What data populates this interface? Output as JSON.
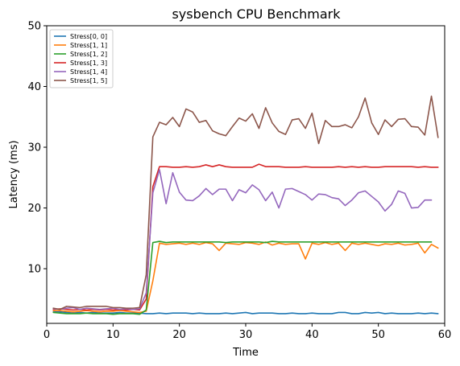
{
  "chart_data": {
    "type": "line",
    "title": "sysbench CPU Benchmark",
    "xlabel": "Time",
    "ylabel": "Latency (ms)",
    "xlim": [
      0,
      60
    ],
    "ylim": [
      1,
      50
    ],
    "xticks": [
      0,
      10,
      20,
      30,
      40,
      50,
      60
    ],
    "yticks": [
      10,
      20,
      30,
      40,
      50
    ],
    "grid": false,
    "legend_position": "top-left",
    "series": [
      {
        "name": "Stress[0, 0]",
        "color": "#1f77b4",
        "x": [
          1,
          2,
          3,
          4,
          5,
          6,
          7,
          8,
          9,
          10,
          11,
          12,
          13,
          14,
          15,
          16,
          17,
          18,
          19,
          20,
          21,
          22,
          23,
          24,
          25,
          26,
          27,
          28,
          29,
          30,
          31,
          32,
          33,
          34,
          35,
          36,
          37,
          38,
          39,
          40,
          41,
          42,
          43,
          44,
          45,
          46,
          47,
          48,
          49,
          50,
          51,
          52,
          53,
          54,
          55,
          56,
          57,
          58,
          59
        ],
        "y": [
          3.0,
          2.9,
          2.8,
          2.7,
          2.8,
          2.7,
          2.8,
          2.7,
          2.7,
          2.7,
          2.8,
          2.7,
          2.7,
          2.7,
          2.6,
          2.6,
          2.7,
          2.6,
          2.7,
          2.7,
          2.7,
          2.6,
          2.7,
          2.6,
          2.6,
          2.6,
          2.7,
          2.6,
          2.7,
          2.8,
          2.6,
          2.7,
          2.7,
          2.7,
          2.6,
          2.6,
          2.7,
          2.6,
          2.6,
          2.7,
          2.6,
          2.6,
          2.6,
          2.8,
          2.8,
          2.6,
          2.6,
          2.8,
          2.7,
          2.8,
          2.6,
          2.7,
          2.6,
          2.6,
          2.6,
          2.7,
          2.6,
          2.7,
          2.6
        ]
      },
      {
        "name": "Stress[1, 1]",
        "color": "#ff7f0e",
        "x": [
          1,
          2,
          3,
          4,
          5,
          6,
          7,
          8,
          9,
          10,
          11,
          12,
          13,
          14,
          15,
          16,
          17,
          18,
          19,
          20,
          21,
          22,
          23,
          24,
          25,
          26,
          27,
          28,
          29,
          30,
          31,
          32,
          33,
          34,
          35,
          36,
          37,
          38,
          39,
          40,
          41,
          42,
          43,
          44,
          45,
          46,
          47,
          48,
          49,
          50,
          51,
          52,
          53,
          54,
          55,
          56,
          57,
          58,
          59
        ],
        "y": [
          3.1,
          3.1,
          3.0,
          2.9,
          3.0,
          3.1,
          3.0,
          2.9,
          3.0,
          3.0,
          3.1,
          3.0,
          2.9,
          2.8,
          3.0,
          8.0,
          14.2,
          14.0,
          14.1,
          14.2,
          14.0,
          14.2,
          14.0,
          14.3,
          14.1,
          13.0,
          14.2,
          14.1,
          14.0,
          14.3,
          14.2,
          14.0,
          14.4,
          13.9,
          14.2,
          14.0,
          14.1,
          14.1,
          11.6,
          14.2,
          14.0,
          14.3,
          14.0,
          14.2,
          13.0,
          14.2,
          14.0,
          14.2,
          14.0,
          13.8,
          14.1,
          14.0,
          14.2,
          13.9,
          14.0,
          14.2,
          12.6,
          14.0,
          13.4
        ]
      },
      {
        "name": "Stress[1, 2]",
        "color": "#2ca02c",
        "x": [
          1,
          2,
          3,
          4,
          5,
          6,
          7,
          8,
          9,
          10,
          11,
          12,
          13,
          14,
          15,
          16,
          17,
          18,
          19,
          20,
          21,
          22,
          23,
          24,
          25,
          26,
          27,
          28,
          29,
          30,
          31,
          32,
          33,
          34,
          35,
          36,
          37,
          38,
          39,
          40,
          41,
          42,
          43,
          44,
          45,
          46,
          47,
          48,
          49,
          50,
          51,
          52,
          53,
          54,
          55,
          56,
          57,
          58
        ],
        "y": [
          2.8,
          2.7,
          2.6,
          2.6,
          2.6,
          2.7,
          2.6,
          2.6,
          2.6,
          2.5,
          2.6,
          2.6,
          2.6,
          2.5,
          3.2,
          14.3,
          14.5,
          14.3,
          14.4,
          14.4,
          14.4,
          14.4,
          14.4,
          14.4,
          14.4,
          14.4,
          14.3,
          14.4,
          14.4,
          14.4,
          14.4,
          14.4,
          14.3,
          14.5,
          14.4,
          14.4,
          14.4,
          14.4,
          14.4,
          14.4,
          14.4,
          14.4,
          14.4,
          14.4,
          14.4,
          14.4,
          14.4,
          14.4,
          14.4,
          14.4,
          14.4,
          14.4,
          14.4,
          14.4,
          14.4,
          14.4,
          14.4,
          14.4
        ]
      },
      {
        "name": "Stress[1, 3]",
        "color": "#d62728",
        "x": [
          1,
          2,
          3,
          4,
          5,
          6,
          7,
          8,
          9,
          10,
          11,
          12,
          13,
          14,
          15,
          16,
          17,
          18,
          19,
          20,
          21,
          22,
          23,
          24,
          25,
          26,
          27,
          28,
          29,
          30,
          31,
          32,
          33,
          34,
          35,
          36,
          37,
          38,
          39,
          40,
          41,
          42,
          43,
          44,
          45,
          46,
          47,
          48,
          49,
          50,
          51,
          52,
          53,
          54,
          55,
          56,
          57,
          58,
          59
        ],
        "y": [
          3.3,
          3.4,
          3.3,
          3.2,
          3.3,
          3.2,
          3.3,
          3.2,
          3.3,
          3.2,
          3.3,
          3.2,
          3.3,
          3.2,
          5.0,
          23.5,
          26.8,
          26.8,
          26.7,
          26.7,
          26.8,
          26.7,
          26.8,
          27.1,
          26.8,
          27.1,
          26.8,
          26.7,
          26.7,
          26.7,
          26.7,
          27.2,
          26.8,
          26.8,
          26.8,
          26.7,
          26.7,
          26.7,
          26.8,
          26.7,
          26.7,
          26.7,
          26.7,
          26.8,
          26.7,
          26.8,
          26.7,
          26.8,
          26.7,
          26.7,
          26.8,
          26.8,
          26.8,
          26.8,
          26.8,
          26.7,
          26.8,
          26.7,
          26.7
        ]
      },
      {
        "name": "Stress[1, 4]",
        "color": "#9467bd",
        "x": [
          1,
          2,
          3,
          4,
          5,
          6,
          7,
          8,
          9,
          10,
          11,
          12,
          13,
          14,
          15,
          16,
          17,
          18,
          19,
          20,
          21,
          22,
          23,
          24,
          25,
          26,
          27,
          28,
          29,
          30,
          31,
          32,
          33,
          34,
          35,
          36,
          37,
          38,
          39,
          40,
          41,
          42,
          43,
          44,
          45,
          46,
          47,
          48,
          49,
          50,
          51,
          52,
          53,
          54,
          55,
          56,
          57,
          58
        ],
        "y": [
          3.4,
          3.3,
          3.5,
          3.6,
          3.3,
          3.5,
          3.4,
          3.3,
          3.4,
          3.5,
          3.3,
          3.4,
          3.3,
          3.4,
          6.0,
          22.5,
          26.3,
          20.7,
          25.8,
          22.6,
          21.3,
          21.2,
          22.0,
          23.2,
          22.2,
          23.1,
          23.1,
          21.2,
          23.0,
          22.5,
          23.8,
          23.0,
          21.2,
          22.6,
          20.0,
          23.1,
          23.2,
          22.7,
          22.2,
          21.3,
          22.3,
          22.2,
          21.7,
          21.5,
          20.4,
          21.3,
          22.5,
          22.8,
          21.9,
          21.0,
          19.5,
          20.6,
          22.8,
          22.4,
          20.0,
          20.1,
          21.3,
          21.3
        ]
      },
      {
        "name": "Stress[1, 5]",
        "color": "#8c564b",
        "x": [
          1,
          2,
          3,
          4,
          5,
          6,
          7,
          8,
          9,
          10,
          11,
          12,
          13,
          14,
          15,
          16,
          17,
          18,
          19,
          20,
          21,
          22,
          23,
          24,
          25,
          26,
          27,
          28,
          29,
          30,
          31,
          32,
          33,
          34,
          35,
          36,
          37,
          38,
          39,
          40,
          41,
          42,
          43,
          44,
          45,
          46,
          47,
          48,
          49,
          50,
          51,
          52,
          53,
          54,
          55,
          56,
          57,
          58,
          59
        ],
        "y": [
          3.5,
          3.3,
          3.8,
          3.7,
          3.6,
          3.8,
          3.8,
          3.8,
          3.8,
          3.6,
          3.6,
          3.5,
          3.5,
          3.6,
          9.0,
          31.7,
          34.1,
          33.7,
          34.9,
          33.4,
          36.3,
          35.8,
          34.1,
          34.4,
          32.7,
          32.2,
          31.9,
          33.4,
          34.8,
          34.3,
          35.5,
          33.1,
          36.5,
          34.0,
          32.6,
          32.1,
          34.5,
          34.7,
          33.1,
          35.6,
          30.6,
          34.4,
          33.4,
          33.4,
          33.7,
          33.2,
          35.0,
          38.1,
          34.0,
          32.1,
          34.5,
          33.4,
          34.6,
          34.7,
          33.4,
          33.3,
          32.0,
          38.4,
          31.6
        ]
      }
    ]
  }
}
